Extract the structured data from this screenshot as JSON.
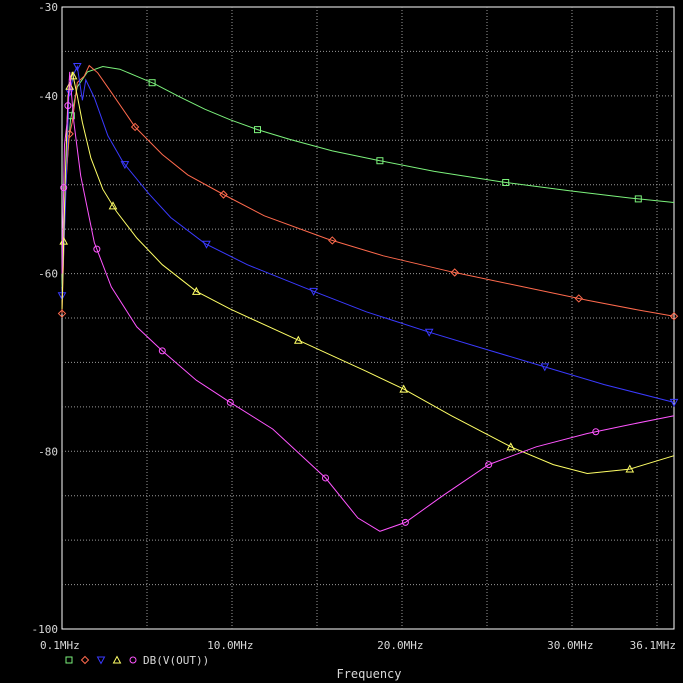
{
  "chart_data": {
    "type": "line",
    "xlabel": "Frequency",
    "ylabel": "",
    "xlim": [
      0.1,
      36.1
    ],
    "ylim": [
      -100,
      -30
    ],
    "x_unit": "MHz",
    "y_unit": "dB",
    "grid": true,
    "x_ticks": [
      "0.1MHz",
      "10.0MHz",
      "20.0MHz",
      "30.0MHz",
      "36.1MHz"
    ],
    "x_tick_values": [
      0.1,
      10.0,
      20.0,
      30.0,
      36.1
    ],
    "y_ticks": [
      "-30",
      "-40",
      "-60",
      "-80",
      "-100"
    ],
    "y_tick_values": [
      -30,
      -40,
      -60,
      -80,
      -100
    ],
    "legend": {
      "placement": "bottom-left",
      "label": "DB(V(OUT))",
      "marker_order": [
        "square",
        "diamond",
        "down-triangle",
        "up-triangle",
        "circle"
      ]
    },
    "series": [
      {
        "marker": "square",
        "color": "#7cf27c",
        "x": [
          0.1,
          0.3,
          0.6,
          1.0,
          1.6,
          2.5,
          3.5,
          4.5,
          5.5,
          7.0,
          8.5,
          10.0,
          11.6,
          13.5,
          16.0,
          18.8,
          22.0,
          26.0,
          30.0,
          33.5,
          36.1
        ],
        "y": [
          -61.5,
          -50.0,
          -42.7,
          -39.0,
          -37.3,
          -36.7,
          -37.0,
          -37.8,
          -38.6,
          -40.1,
          -41.5,
          -42.7,
          -43.8,
          -44.9,
          -46.2,
          -47.3,
          -48.5,
          -49.7,
          -50.7,
          -51.5,
          -52.0
        ],
        "markers_x": [
          0.65,
          5.4,
          11.6,
          18.8,
          26.2,
          34.0
        ]
      },
      {
        "marker": "diamond",
        "color": "#ff6a4d",
        "x": [
          0.1,
          0.3,
          0.5,
          0.7,
          1.0,
          1.4,
          1.7,
          2.2,
          3.0,
          4.4,
          6.0,
          7.5,
          9.6,
          12.0,
          15.7,
          19.0,
          23.0,
          27.0,
          31.0,
          34.0,
          36.1
        ],
        "y": [
          -64.5,
          -51.0,
          -44.7,
          -43.0,
          -38.5,
          -37.8,
          -36.6,
          -37.4,
          -39.6,
          -43.5,
          -46.6,
          -48.9,
          -51.1,
          -53.5,
          -56.1,
          -58.0,
          -59.8,
          -61.4,
          -63.0,
          -64.1,
          -64.8
        ],
        "markers_x": [
          0.1,
          0.55,
          4.4,
          9.6,
          16.0,
          23.2,
          30.5,
          36.1
        ]
      },
      {
        "marker": "down-triangle",
        "color": "#3a3aff",
        "x": [
          0.1,
          0.3,
          0.5,
          0.8,
          1.0,
          1.3,
          1.5,
          2.0,
          2.8,
          3.7,
          5.2,
          6.5,
          8.5,
          11.0,
          14.9,
          18.0,
          21.7,
          25.0,
          28.5,
          32.0,
          36.1
        ],
        "y": [
          -62.5,
          -52.5,
          -40.0,
          -37.5,
          -36.7,
          -40.5,
          -38.2,
          -40.2,
          -44.5,
          -47.5,
          -51.0,
          -53.7,
          -56.6,
          -59.0,
          -62.0,
          -64.3,
          -66.6,
          -68.5,
          -70.5,
          -72.5,
          -74.5
        ],
        "markers_x": [
          0.1,
          0.55,
          1.0,
          3.8,
          8.6,
          14.9,
          21.7,
          28.5,
          36.1
        ]
      },
      {
        "marker": "up-triangle",
        "color": "#ffff66",
        "x": [
          0.1,
          0.3,
          0.45,
          0.7,
          1.0,
          1.3,
          1.8,
          2.5,
          3.3,
          4.5,
          6.0,
          8.0,
          10.0,
          14.0,
          18.0,
          20.2,
          23.0,
          26.5,
          29.0,
          31.0,
          33.5,
          36.1
        ],
        "y": [
          -64.0,
          -48.7,
          -40.0,
          -37.3,
          -40.0,
          -43.0,
          -47.0,
          -50.5,
          -53.0,
          -56.0,
          -59.0,
          -62.0,
          -64.0,
          -67.5,
          -71.0,
          -73.0,
          -76.0,
          -79.5,
          -81.5,
          -82.5,
          -82.0,
          -80.5
        ],
        "markers_x": [
          0.2,
          0.55,
          0.75,
          3.1,
          8.0,
          14.0,
          20.2,
          26.5,
          33.5
        ]
      },
      {
        "marker": "circle",
        "color": "#ff55ff",
        "x": [
          0.1,
          0.25,
          0.4,
          0.55,
          0.8,
          1.2,
          2.0,
          3.0,
          4.5,
          6.0,
          8.0,
          10.0,
          12.5,
          15.6,
          17.5,
          18.8,
          20.3,
          22.5,
          25.2,
          28.0,
          31.0,
          33.5,
          36.1
        ],
        "y": [
          -60.0,
          -45.5,
          -43.0,
          -37.3,
          -43.0,
          -49.0,
          -56.5,
          -61.5,
          -66.0,
          -68.7,
          -72.0,
          -74.5,
          -77.5,
          -83.0,
          -87.5,
          -89.0,
          -88.0,
          -85.0,
          -81.5,
          -79.5,
          -78.0,
          -77.0,
          -76.0
        ],
        "markers_x": [
          0.2,
          0.45,
          2.15,
          6.0,
          10.0,
          15.6,
          20.3,
          25.2,
          31.5
        ]
      }
    ]
  }
}
